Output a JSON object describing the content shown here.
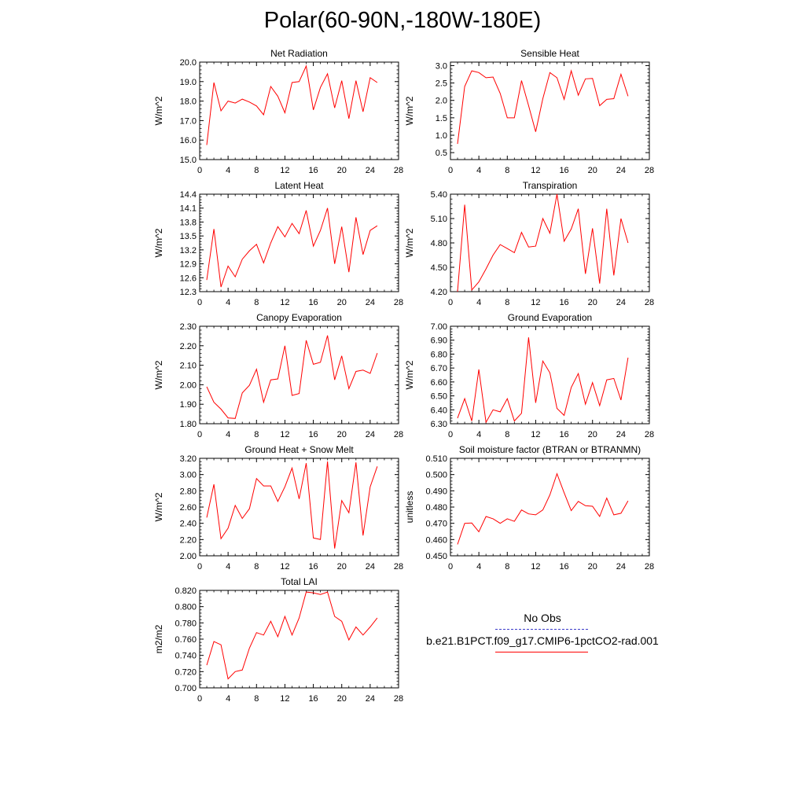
{
  "title": "Polar(60-90N,-180W-180E)",
  "legend": {
    "items": [
      {
        "label": "No Obs",
        "color": "#3a3ac8",
        "dash": "dashed"
      },
      {
        "label": "b.e21.B1PCT.f09_g17.CMIP6-1pctCO2-rad.001",
        "color": "#ff0000",
        "dash": "solid"
      }
    ]
  },
  "chart_data": [
    {
      "type": "line",
      "title": "Net Radiation",
      "ylabel": "W/m^2",
      "xlim": [
        0,
        28
      ],
      "xticks": [
        0,
        4,
        8,
        12,
        16,
        20,
        24,
        28
      ],
      "ylim": [
        15.0,
        20.0
      ],
      "yticks": [
        15.0,
        16.0,
        17.0,
        18.0,
        19.0,
        20.0
      ],
      "ytick_decimals": 1,
      "series": [
        {
          "color": "#ff0000",
          "x": [
            1,
            2,
            3,
            4,
            5,
            6,
            7,
            8,
            9,
            10,
            11,
            12,
            13,
            14,
            15,
            16,
            17,
            18,
            19,
            20,
            21,
            22,
            23,
            24,
            25
          ],
          "y": [
            15.75,
            18.95,
            17.5,
            18.0,
            17.9,
            18.1,
            17.95,
            17.75,
            17.3,
            18.75,
            18.25,
            17.4,
            18.95,
            19.0,
            19.8,
            17.55,
            18.7,
            19.4,
            17.65,
            19.05,
            17.1,
            19.05,
            17.45,
            19.2,
            18.95
          ]
        }
      ]
    },
    {
      "type": "line",
      "title": "Sensible Heat",
      "ylabel": "W/m^2",
      "xlim": [
        0,
        28
      ],
      "xticks": [
        0,
        4,
        8,
        12,
        16,
        20,
        24,
        28
      ],
      "ylim": [
        0.3,
        3.1
      ],
      "yticks": [
        0.5,
        1.0,
        1.5,
        2.0,
        2.5,
        3.0
      ],
      "ytick_decimals": 1,
      "series": [
        {
          "color": "#ff0000",
          "x": [
            1,
            2,
            3,
            4,
            5,
            6,
            7,
            8,
            9,
            10,
            11,
            12,
            13,
            14,
            15,
            16,
            17,
            18,
            19,
            20,
            21,
            22,
            23,
            24,
            25
          ],
          "y": [
            0.75,
            2.4,
            2.85,
            2.8,
            2.65,
            2.67,
            2.2,
            1.5,
            1.5,
            2.57,
            1.85,
            1.1,
            2.05,
            2.8,
            2.65,
            2.03,
            2.85,
            2.15,
            2.62,
            2.63,
            1.85,
            2.03,
            2.05,
            2.75,
            2.12
          ]
        }
      ]
    },
    {
      "type": "line",
      "title": "Latent Heat",
      "ylabel": "W/m^2",
      "xlim": [
        0,
        28
      ],
      "xticks": [
        0,
        4,
        8,
        12,
        16,
        20,
        24,
        28
      ],
      "ylim": [
        12.3,
        14.4
      ],
      "yticks": [
        12.3,
        12.6,
        12.9,
        13.2,
        13.5,
        13.8,
        14.1,
        14.4
      ],
      "ytick_decimals": 1,
      "series": [
        {
          "color": "#ff0000",
          "x": [
            1,
            2,
            3,
            4,
            5,
            6,
            7,
            8,
            9,
            10,
            11,
            12,
            13,
            14,
            15,
            16,
            17,
            18,
            19,
            20,
            21,
            22,
            23,
            24,
            25
          ],
          "y": [
            12.55,
            13.65,
            12.4,
            12.85,
            12.62,
            13.0,
            13.18,
            13.32,
            12.92,
            13.35,
            13.7,
            13.48,
            13.77,
            13.55,
            14.05,
            13.28,
            13.62,
            14.1,
            12.9,
            13.7,
            12.72,
            13.9,
            13.1,
            13.62,
            13.72
          ]
        }
      ]
    },
    {
      "type": "line",
      "title": "Transpiration",
      "ylabel": "W/m^2",
      "xlim": [
        0,
        28
      ],
      "xticks": [
        0,
        4,
        8,
        12,
        16,
        20,
        24,
        28
      ],
      "ylim": [
        4.2,
        5.4
      ],
      "yticks": [
        4.2,
        4.5,
        4.8,
        5.1,
        5.4
      ],
      "ytick_decimals": 2,
      "series": [
        {
          "color": "#ff0000",
          "x": [
            1,
            2,
            3,
            4,
            5,
            6,
            7,
            8,
            9,
            10,
            11,
            12,
            13,
            14,
            15,
            16,
            17,
            18,
            19,
            20,
            21,
            22,
            23,
            24,
            25
          ],
          "y": [
            4.2,
            5.27,
            4.22,
            4.32,
            4.48,
            4.65,
            4.78,
            4.73,
            4.68,
            4.93,
            4.75,
            4.76,
            5.1,
            4.92,
            5.4,
            4.82,
            4.97,
            5.22,
            4.42,
            4.98,
            4.3,
            5.22,
            4.4,
            5.1,
            4.8
          ]
        }
      ]
    },
    {
      "type": "line",
      "title": "Canopy Evaporation",
      "ylabel": "W/m^2",
      "xlim": [
        0,
        28
      ],
      "xticks": [
        0,
        4,
        8,
        12,
        16,
        20,
        24,
        28
      ],
      "ylim": [
        1.8,
        2.3
      ],
      "yticks": [
        1.8,
        1.9,
        2.0,
        2.1,
        2.2,
        2.3
      ],
      "ytick_decimals": 2,
      "series": [
        {
          "color": "#ff0000",
          "x": [
            1,
            2,
            3,
            4,
            5,
            6,
            7,
            8,
            9,
            10,
            11,
            12,
            13,
            14,
            15,
            16,
            17,
            18,
            19,
            20,
            21,
            22,
            23,
            24,
            25
          ],
          "y": [
            1.99,
            1.91,
            1.875,
            1.83,
            1.827,
            1.958,
            1.997,
            2.08,
            1.91,
            2.025,
            2.03,
            2.2,
            1.945,
            1.955,
            2.228,
            2.105,
            2.115,
            2.253,
            2.025,
            2.148,
            1.98,
            2.068,
            2.075,
            2.058,
            2.162
          ]
        }
      ]
    },
    {
      "type": "line",
      "title": "Ground Evaporation",
      "ylabel": "W/m^2",
      "xlim": [
        0,
        28
      ],
      "xticks": [
        0,
        4,
        8,
        12,
        16,
        20,
        24,
        28
      ],
      "ylim": [
        6.3,
        7.0
      ],
      "yticks": [
        6.3,
        6.4,
        6.5,
        6.6,
        6.7,
        6.8,
        6.9,
        7.0
      ],
      "ytick_decimals": 2,
      "series": [
        {
          "color": "#ff0000",
          "x": [
            1,
            2,
            3,
            4,
            5,
            6,
            7,
            8,
            9,
            10,
            11,
            12,
            13,
            14,
            15,
            16,
            17,
            18,
            19,
            20,
            21,
            22,
            23,
            24,
            25
          ],
          "y": [
            6.34,
            6.48,
            6.32,
            6.69,
            6.31,
            6.4,
            6.385,
            6.48,
            6.32,
            6.375,
            6.92,
            6.45,
            6.75,
            6.665,
            6.41,
            6.36,
            6.56,
            6.66,
            6.44,
            6.595,
            6.43,
            6.615,
            6.625,
            6.47,
            6.775
          ]
        }
      ]
    },
    {
      "type": "line",
      "title": "Ground Heat + Snow Melt",
      "ylabel": "W/m^2",
      "xlim": [
        0,
        28
      ],
      "xticks": [
        0,
        4,
        8,
        12,
        16,
        20,
        24,
        28
      ],
      "ylim": [
        2.0,
        3.2
      ],
      "yticks": [
        2.0,
        2.2,
        2.4,
        2.6,
        2.8,
        3.0,
        3.2
      ],
      "ytick_decimals": 2,
      "series": [
        {
          "color": "#ff0000",
          "x": [
            1,
            2,
            3,
            4,
            5,
            6,
            7,
            8,
            9,
            10,
            11,
            12,
            13,
            14,
            15,
            16,
            17,
            18,
            19,
            20,
            21,
            22,
            23,
            24,
            25
          ],
          "y": [
            2.47,
            2.88,
            2.21,
            2.34,
            2.62,
            2.46,
            2.58,
            2.95,
            2.86,
            2.86,
            2.67,
            2.85,
            3.08,
            2.7,
            3.14,
            2.22,
            2.2,
            3.16,
            2.09,
            2.68,
            2.53,
            3.15,
            2.25,
            2.85,
            3.1
          ]
        }
      ]
    },
    {
      "type": "line",
      "title": "Soil moisture factor (BTRAN or BTRANMN)",
      "ylabel": "unitless",
      "xlim": [
        0,
        28
      ],
      "xticks": [
        0,
        4,
        8,
        12,
        16,
        20,
        24,
        28
      ],
      "ylim": [
        0.45,
        0.51
      ],
      "yticks": [
        0.45,
        0.46,
        0.47,
        0.48,
        0.49,
        0.5,
        0.51
      ],
      "ytick_decimals": 3,
      "series": [
        {
          "color": "#ff0000",
          "x": [
            1,
            2,
            3,
            4,
            5,
            6,
            7,
            8,
            9,
            10,
            11,
            12,
            13,
            14,
            15,
            16,
            17,
            18,
            19,
            20,
            21,
            22,
            23,
            24,
            25
          ],
          "y": [
            0.457,
            0.47,
            0.4702,
            0.4648,
            0.4742,
            0.4728,
            0.47,
            0.4728,
            0.4712,
            0.4782,
            0.4758,
            0.4752,
            0.4782,
            0.4875,
            0.5005,
            0.4888,
            0.4778,
            0.4835,
            0.4808,
            0.4805,
            0.4742,
            0.4855,
            0.4752,
            0.4762,
            0.4838
          ]
        }
      ]
    },
    {
      "type": "line",
      "title": "Total LAI",
      "ylabel": "m2/m2",
      "xlim": [
        0,
        28
      ],
      "xticks": [
        0,
        4,
        8,
        12,
        16,
        20,
        24,
        28
      ],
      "ylim": [
        0.7,
        0.82
      ],
      "yticks": [
        0.7,
        0.72,
        0.74,
        0.76,
        0.78,
        0.8,
        0.82
      ],
      "ytick_decimals": 3,
      "series": [
        {
          "color": "#ff0000",
          "x": [
            1,
            2,
            3,
            4,
            5,
            6,
            7,
            8,
            9,
            10,
            11,
            12,
            13,
            14,
            15,
            16,
            17,
            18,
            19,
            20,
            21,
            22,
            23,
            24,
            25
          ],
          "y": [
            0.728,
            0.757,
            0.753,
            0.711,
            0.72,
            0.722,
            0.749,
            0.768,
            0.765,
            0.782,
            0.763,
            0.788,
            0.765,
            0.786,
            0.818,
            0.817,
            0.815,
            0.818,
            0.788,
            0.782,
            0.759,
            0.775,
            0.765,
            0.775,
            0.786
          ]
        }
      ]
    }
  ]
}
